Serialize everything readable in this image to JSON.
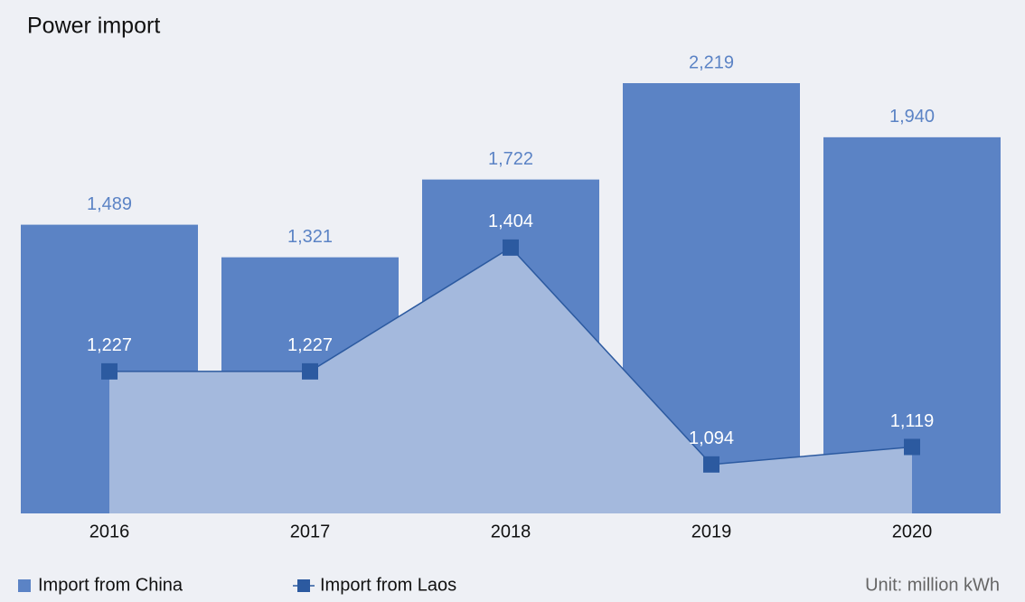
{
  "chart_data": {
    "type": "bar-line",
    "title": "Power import",
    "unit": "Unit: million kWh",
    "categories": [
      "2016",
      "2017",
      "2018",
      "2019",
      "2020"
    ],
    "ylim": [
      0,
      2219
    ],
    "y2lim": [
      1024,
      1639
    ],
    "series": [
      {
        "name": "Import from China",
        "color": "#5b83c5",
        "values": [
          1489,
          1321,
          1722,
          2219,
          1940
        ],
        "value_labels": [
          "1,489",
          "1,321",
          "1,722",
          "2,219",
          "1,940"
        ]
      },
      {
        "name": "Import from Laos",
        "color": "#2c5aa0",
        "axis": "y2",
        "values": [
          1227,
          1227,
          1404,
          1094,
          1119
        ],
        "value_labels": [
          "1,227",
          "1,227",
          "1,404",
          "1,094",
          "1,119"
        ]
      }
    ]
  }
}
